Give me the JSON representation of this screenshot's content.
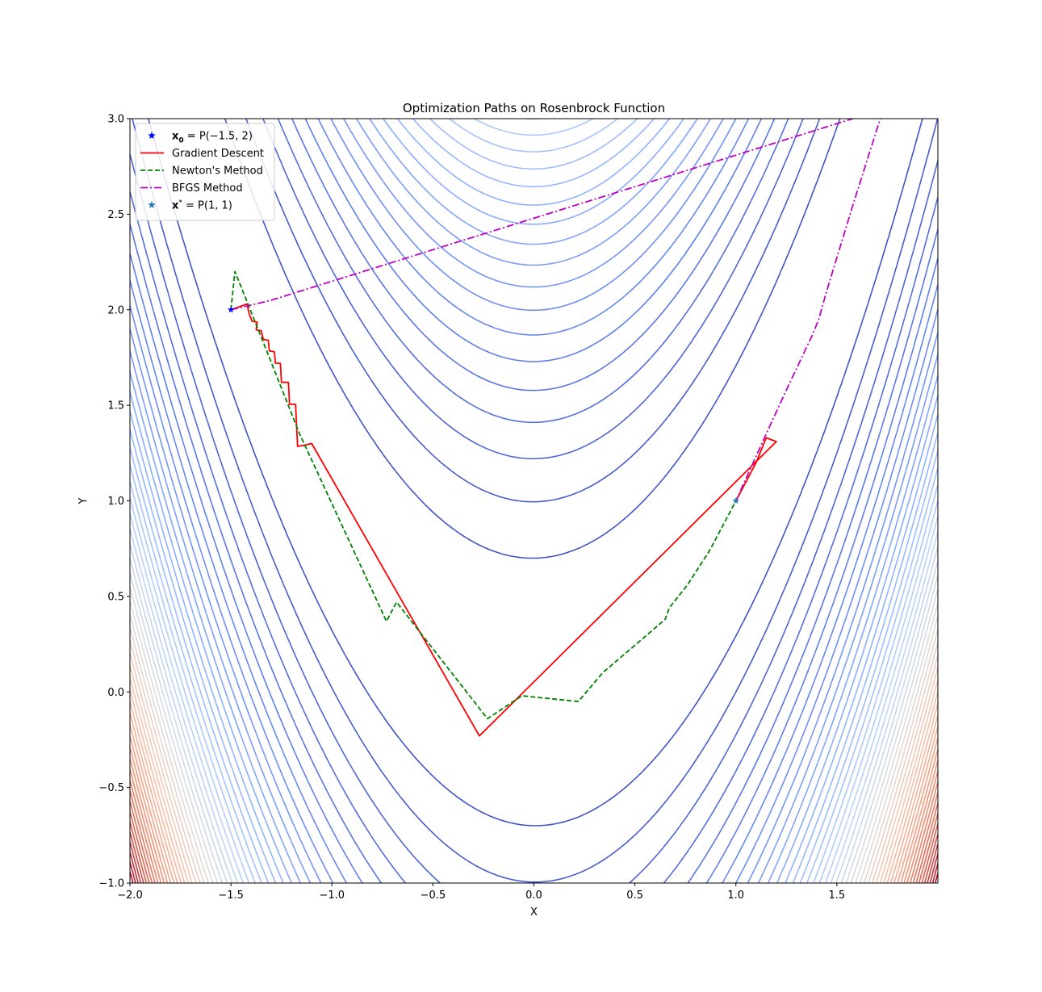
{
  "chart_data": {
    "type": "line",
    "title": "Optimization Paths on Rosenbrock Function",
    "xlabel": "X",
    "ylabel": "Y",
    "xlim": [
      -2.0,
      2.0
    ],
    "ylim": [
      -1.0,
      3.0
    ],
    "x_ticks": [
      -2.0,
      -1.5,
      -1.0,
      -0.5,
      0.0,
      0.5,
      1.0,
      1.5
    ],
    "x_tick_labels": [
      "−2.0",
      "−1.5",
      "−1.0",
      "−0.5",
      "0.0",
      "0.5",
      "1.0",
      "1.5"
    ],
    "y_ticks": [
      -1.0,
      -0.5,
      0.0,
      0.5,
      1.0,
      1.5,
      2.0,
      2.5,
      3.0
    ],
    "y_tick_labels": [
      "−1.0",
      "−0.5",
      "0.0",
      "0.5",
      "1.0",
      "1.5",
      "2.0",
      "2.5",
      "3.0"
    ],
    "grid": false,
    "legend_position": "top-left",
    "background": {
      "kind": "contour",
      "function": "Rosenbrock f(x, y) = (1 - x)^2 + 100 (y - x^2)^2",
      "colormap": "coolwarm",
      "level_max": 2500
    },
    "series": [
      {
        "name": "Gradient Descent",
        "color": "#ff0000",
        "dash": "solid",
        "points": [
          [
            -1.5,
            2.0
          ],
          [
            -1.42,
            2.03
          ],
          [
            -1.41,
            1.98
          ],
          [
            -1.395,
            1.94
          ],
          [
            -1.37,
            1.935
          ],
          [
            -1.375,
            1.895
          ],
          [
            -1.35,
            1.89
          ],
          [
            -1.34,
            1.845
          ],
          [
            -1.315,
            1.84
          ],
          [
            -1.31,
            1.785
          ],
          [
            -1.285,
            1.78
          ],
          [
            -1.28,
            1.72
          ],
          [
            -1.255,
            1.72
          ],
          [
            -1.25,
            1.62
          ],
          [
            -1.215,
            1.62
          ],
          [
            -1.21,
            1.505
          ],
          [
            -1.18,
            1.505
          ],
          [
            -1.17,
            1.285
          ],
          [
            -1.14,
            1.29
          ],
          [
            -1.1,
            1.3
          ],
          [
            -0.27,
            -0.23
          ],
          [
            1.2,
            1.31
          ],
          [
            1.15,
            1.33
          ],
          [
            1.1,
            1.2
          ],
          [
            1.0,
            1.0
          ]
        ]
      },
      {
        "name": "Newton's Method",
        "color": "#008000",
        "dash": "dashed",
        "points": [
          [
            -1.5,
            2.0
          ],
          [
            -1.48,
            2.2
          ],
          [
            -1.34,
            1.83
          ],
          [
            -1.16,
            1.35
          ],
          [
            -0.73,
            0.37
          ],
          [
            -0.68,
            0.47
          ],
          [
            -0.23,
            -0.14
          ],
          [
            -0.06,
            -0.02
          ],
          [
            0.22,
            -0.05
          ],
          [
            0.34,
            0.1
          ],
          [
            0.65,
            0.38
          ],
          [
            0.67,
            0.44
          ],
          [
            0.76,
            0.56
          ],
          [
            0.87,
            0.74
          ],
          [
            1.0,
            1.0
          ]
        ]
      },
      {
        "name": "BFGS Method",
        "color": "#bf00bf",
        "dash": "dashdot",
        "points": [
          [
            -1.5,
            2.0
          ],
          [
            -1.3,
            2.05
          ],
          [
            1.73,
            3.05
          ],
          [
            1.58,
            2.55
          ],
          [
            1.45,
            2.1
          ],
          [
            1.41,
            1.95
          ],
          [
            1.38,
            1.87
          ],
          [
            1.25,
            1.58
          ],
          [
            1.15,
            1.35
          ],
          [
            1.0,
            1.0
          ]
        ]
      }
    ],
    "markers": [
      {
        "name": "x0 = P(−1.5, 2)",
        "color": "#0000ff",
        "shape": "star",
        "x": -1.5,
        "y": 2.0
      },
      {
        "name": "x* = P(1, 1)",
        "color": "#1f77b4",
        "shape": "star",
        "x": 1.0,
        "y": 1.0
      }
    ],
    "legend": [
      {
        "kind": "marker",
        "color": "#0000ff",
        "pre": "x",
        "sub": "0",
        "rest": " = P(−1.5, 2)"
      },
      {
        "kind": "line",
        "color": "#ff0000",
        "dash": "solid",
        "label": "Gradient Descent"
      },
      {
        "kind": "line",
        "color": "#008000",
        "dash": "dashed",
        "label": "Newton's Method"
      },
      {
        "kind": "line",
        "color": "#bf00bf",
        "dash": "dashdot",
        "label": "BFGS Method"
      },
      {
        "kind": "marker",
        "color": "#1f77b4",
        "pre": "x",
        "sup": "*",
        "rest": " = P(1, 1)"
      }
    ]
  }
}
